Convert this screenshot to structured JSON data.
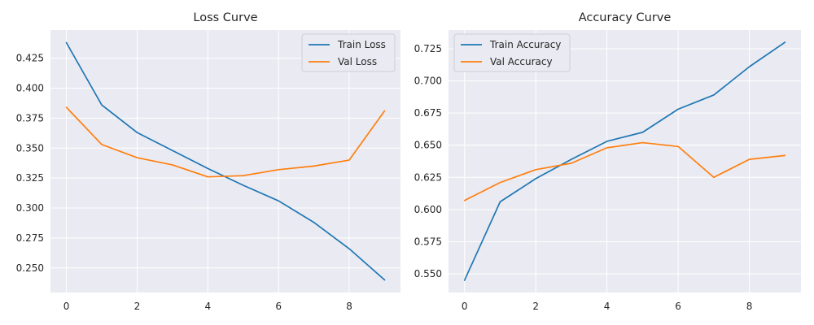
{
  "chart_data": [
    {
      "type": "line",
      "title": "Loss Curve",
      "xlabel": "",
      "ylabel": "",
      "x": [
        0,
        1,
        2,
        3,
        4,
        5,
        6,
        7,
        8,
        9
      ],
      "xlim": [
        -0.45,
        9.45
      ],
      "ylim": [
        0.2295,
        0.4485
      ],
      "xticks": [
        0,
        2,
        4,
        6,
        8
      ],
      "xtick_labels": [
        "0",
        "2",
        "4",
        "6",
        "8"
      ],
      "yticks": [
        0.25,
        0.275,
        0.3,
        0.325,
        0.35,
        0.375,
        0.4,
        0.425
      ],
      "ytick_labels": [
        "0.250",
        "0.275",
        "0.300",
        "0.325",
        "0.350",
        "0.375",
        "0.400",
        "0.425"
      ],
      "grid": true,
      "legend_position": "top-right",
      "series": [
        {
          "name": "Train Loss",
          "color": "#1f77b4",
          "values": [
            0.438,
            0.386,
            0.363,
            0.348,
            0.333,
            0.319,
            0.306,
            0.288,
            0.266,
            0.24
          ]
        },
        {
          "name": "Val Loss",
          "color": "#ff7f0e",
          "values": [
            0.384,
            0.353,
            0.342,
            0.336,
            0.326,
            0.327,
            0.332,
            0.335,
            0.34,
            0.381
          ]
        }
      ]
    },
    {
      "type": "line",
      "title": "Accuracy Curve",
      "xlabel": "",
      "ylabel": "",
      "x": [
        0,
        1,
        2,
        3,
        4,
        5,
        6,
        7,
        8,
        9
      ],
      "xlim": [
        -0.45,
        9.45
      ],
      "ylim": [
        0.5355,
        0.7395
      ],
      "xticks": [
        0,
        2,
        4,
        6,
        8
      ],
      "xtick_labels": [
        "0",
        "2",
        "4",
        "6",
        "8"
      ],
      "yticks": [
        0.55,
        0.575,
        0.6,
        0.625,
        0.65,
        0.675,
        0.7,
        0.725
      ],
      "ytick_labels": [
        "0.550",
        "0.575",
        "0.600",
        "0.625",
        "0.650",
        "0.675",
        "0.700",
        "0.725"
      ],
      "grid": true,
      "legend_position": "top-left",
      "series": [
        {
          "name": "Train Accuracy",
          "color": "#1f77b4",
          "values": [
            0.545,
            0.606,
            0.624,
            0.639,
            0.653,
            0.66,
            0.678,
            0.689,
            0.711,
            0.73
          ]
        },
        {
          "name": "Val Accuracy",
          "color": "#ff7f0e",
          "values": [
            0.607,
            0.621,
            0.631,
            0.636,
            0.648,
            0.652,
            0.649,
            0.625,
            0.639,
            0.642
          ]
        }
      ]
    }
  ]
}
